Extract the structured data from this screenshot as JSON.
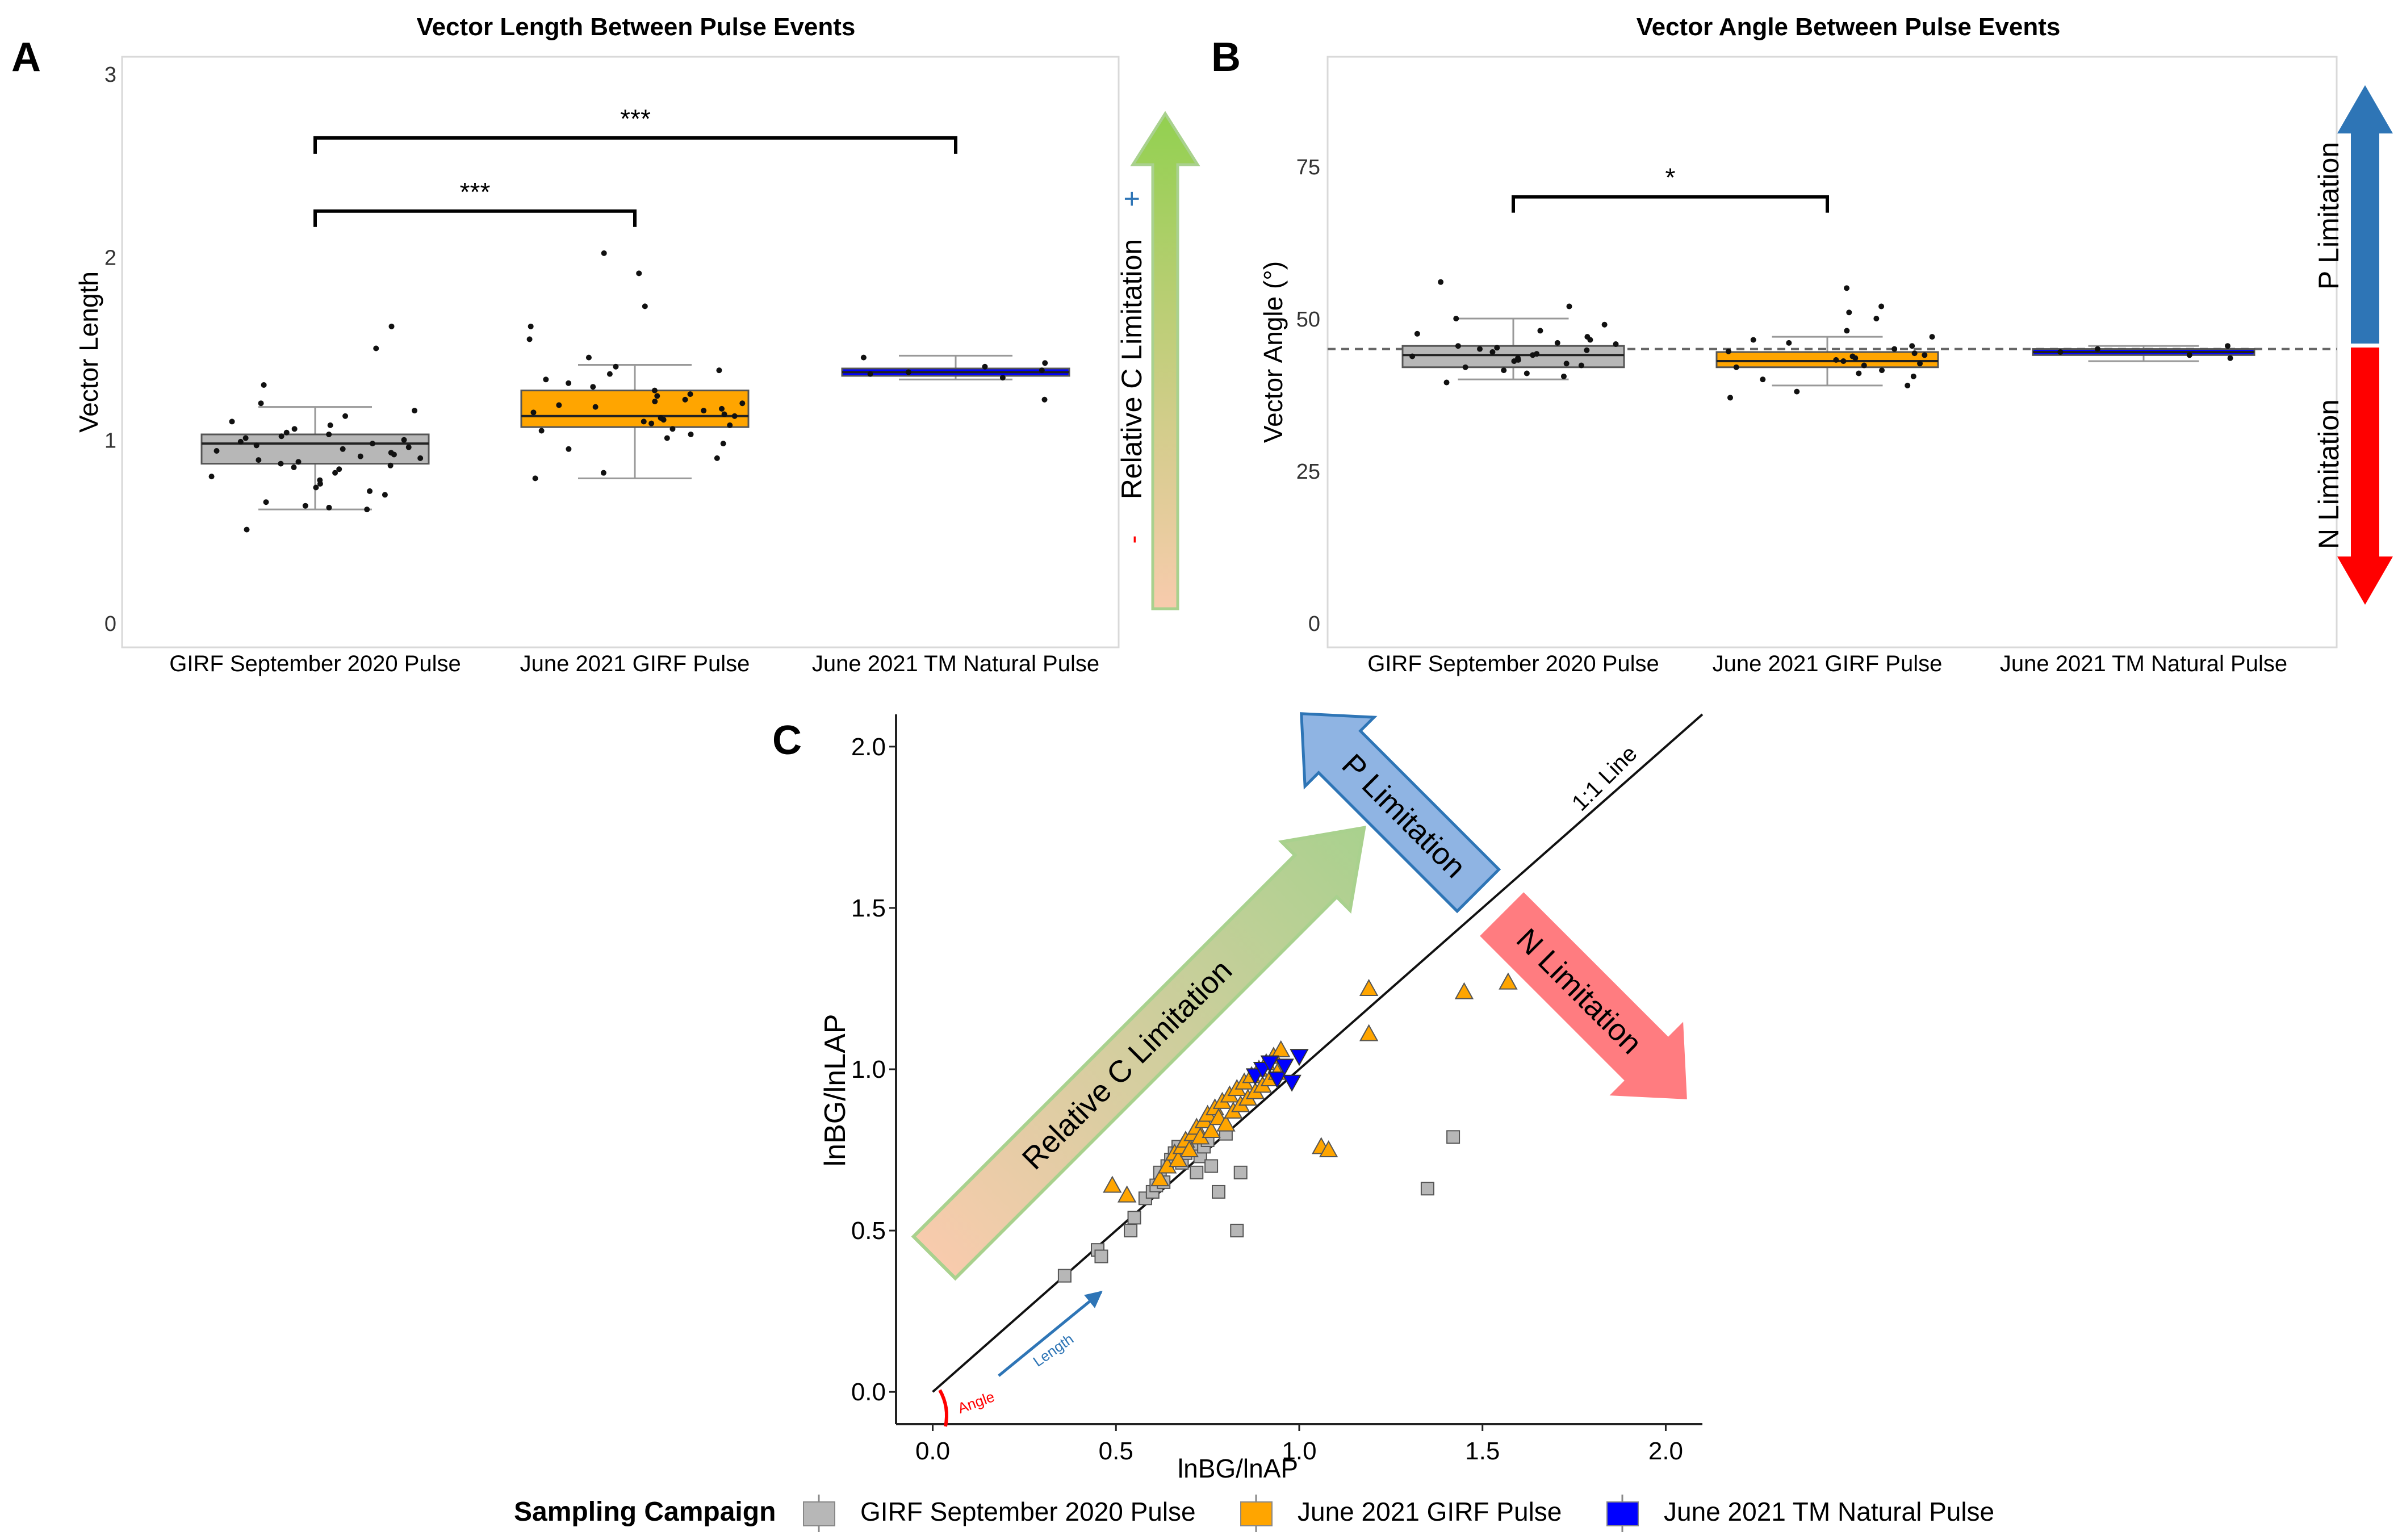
{
  "colors": {
    "gray": "#b7b7b7",
    "orange": "#ffa500",
    "blue": "#0000ff",
    "green": "#92d050",
    "peach": "#f8cbad",
    "red": "#ff0000",
    "steel": "#2e75b6",
    "light_blue": "#8fb4e3",
    "salmon": "#ff7c80"
  },
  "chart_data": [
    {
      "panel": "A",
      "type": "box",
      "title": "Vector Length Between Pulse Events",
      "ylabel": "Vector Length",
      "xlabel": "",
      "ylim": [
        0,
        3
      ],
      "yticks": [
        0,
        1,
        2,
        3
      ],
      "categories": [
        "GIRF September 2020 Pulse",
        "June 2021 GIRF Pulse",
        "June 2021 TM Natural Pulse"
      ],
      "boxes": [
        {
          "min": 0.62,
          "q1": 0.87,
          "median": 0.98,
          "q3": 1.03,
          "max": 1.18
        },
        {
          "min": 0.79,
          "q1": 1.07,
          "median": 1.13,
          "q3": 1.27,
          "max": 1.41
        },
        {
          "min": 1.33,
          "q1": 1.35,
          "median": 1.37,
          "q3": 1.39,
          "max": 1.46
        }
      ],
      "points": [
        [
          0.51,
          0.62,
          0.63,
          0.64,
          0.66,
          0.7,
          0.72,
          0.74,
          0.76,
          0.78,
          0.8,
          0.82,
          0.84,
          0.85,
          0.86,
          0.87,
          0.88,
          0.89,
          0.9,
          0.91,
          0.92,
          0.93,
          0.94,
          0.95,
          0.96,
          0.97,
          0.98,
          0.99,
          1.0,
          1.01,
          1.02,
          1.03,
          1.04,
          1.06,
          1.08,
          1.1,
          1.13,
          1.16,
          1.2,
          1.3,
          1.5,
          1.62
        ],
        [
          0.79,
          0.82,
          0.9,
          0.95,
          0.98,
          1.01,
          1.03,
          1.05,
          1.06,
          1.08,
          1.09,
          1.1,
          1.11,
          1.12,
          1.13,
          1.14,
          1.15,
          1.16,
          1.17,
          1.18,
          1.19,
          1.2,
          1.21,
          1.22,
          1.24,
          1.25,
          1.27,
          1.29,
          1.31,
          1.33,
          1.36,
          1.38,
          1.4,
          1.45,
          1.55,
          1.62,
          1.73,
          1.91,
          2.02
        ],
        [
          1.22,
          1.34,
          1.36,
          1.37,
          1.38,
          1.4,
          1.42,
          1.45
        ]
      ],
      "significance": [
        {
          "from": 0,
          "to": 1,
          "label": "***",
          "y": 2.25
        },
        {
          "from": 0,
          "to": 2,
          "label": "***",
          "y": 2.65
        }
      ],
      "side_arrow": {
        "label": "Relative C Limitation",
        "minus": "-",
        "plus": "+"
      }
    },
    {
      "panel": "B",
      "type": "box",
      "title": "Vector Angle Between Pulse Events",
      "ylabel": "Vector Angle (°)",
      "xlabel": "",
      "ylim": [
        0,
        93
      ],
      "yticks": [
        0,
        25,
        50,
        75
      ],
      "reference_line": 45,
      "categories": [
        "GIRF September 2020 Pulse",
        "June 2021 GIRF Pulse",
        "June 2021 TM Natural Pulse"
      ],
      "boxes": [
        {
          "min": 40,
          "q1": 42,
          "median": 44,
          "q3": 45.5,
          "max": 50
        },
        {
          "min": 39,
          "q1": 42,
          "median": 43,
          "q3": 44.5,
          "max": 47
        },
        {
          "min": 43,
          "q1": 44,
          "median": 44.5,
          "q3": 45,
          "max": 45.5
        }
      ],
      "points": [
        [
          39.5,
          40.5,
          41,
          41.5,
          42,
          42.3,
          42.6,
          43,
          43.2,
          43.5,
          43.8,
          44,
          44.2,
          44.5,
          44.8,
          45,
          45.2,
          45.5,
          45.8,
          46,
          46.5,
          47,
          47.5,
          48,
          49,
          50,
          52,
          56
        ],
        [
          37,
          38,
          39,
          40,
          40.5,
          41,
          41.5,
          42,
          42.3,
          42.6,
          43,
          43.2,
          43.5,
          43.8,
          44,
          44.3,
          44.6,
          45,
          45.5,
          46,
          46.5,
          47,
          48,
          50,
          51,
          52,
          55
        ],
        [
          43.5,
          44,
          44.5,
          45,
          45.5
        ]
      ],
      "significance": [
        {
          "from": 0,
          "to": 1,
          "label": "*",
          "y": 70
        }
      ],
      "side_arrow": {
        "top": "P Limitation",
        "bottom": "N Limitation"
      }
    },
    {
      "panel": "C",
      "type": "scatter",
      "xlabel": "lnBG/lnAP",
      "ylabel": "lnBG/lnLAP",
      "xlim": [
        -0.1,
        2.1
      ],
      "ylim": [
        -0.1,
        2.1
      ],
      "xticks": [
        0.0,
        0.5,
        1.0,
        1.5,
        2.0
      ],
      "yticks": [
        0.0,
        0.5,
        1.0,
        1.5,
        2.0
      ],
      "xtick_labels": [
        "0.0",
        "0.5",
        "1.0",
        "1.5",
        "2.0"
      ],
      "ytick_labels": [
        "0.0",
        "0.5",
        "1.0",
        "1.5",
        "2.0"
      ],
      "reference_line": {
        "label": "1:1 Line"
      },
      "series": [
        {
          "name": "GIRF September 2020 Pulse",
          "marker": "square",
          "x": [
            0.36,
            0.45,
            0.46,
            0.54,
            0.55,
            0.58,
            0.6,
            0.61,
            0.62,
            0.63,
            0.64,
            0.65,
            0.66,
            0.67,
            0.68,
            0.69,
            0.7,
            0.71,
            0.72,
            0.73,
            0.74,
            0.75,
            0.76,
            0.78,
            0.8,
            0.83,
            0.84,
            1.35,
            1.42
          ],
          "y": [
            0.36,
            0.44,
            0.42,
            0.5,
            0.54,
            0.6,
            0.62,
            0.64,
            0.68,
            0.65,
            0.7,
            0.72,
            0.74,
            0.76,
            0.71,
            0.74,
            0.77,
            0.75,
            0.68,
            0.73,
            0.76,
            0.78,
            0.7,
            0.62,
            0.8,
            0.5,
            0.68,
            0.63,
            0.79
          ]
        },
        {
          "name": "June 2021 GIRF Pulse",
          "marker": "triangle-up",
          "x": [
            0.49,
            0.53,
            0.62,
            0.64,
            0.66,
            0.67,
            0.68,
            0.69,
            0.7,
            0.71,
            0.72,
            0.73,
            0.74,
            0.75,
            0.76,
            0.77,
            0.78,
            0.79,
            0.8,
            0.81,
            0.82,
            0.83,
            0.84,
            0.85,
            0.86,
            0.87,
            0.88,
            0.89,
            0.9,
            0.91,
            0.92,
            0.93,
            0.94,
            0.95,
            1.06,
            1.08,
            1.19,
            1.19,
            1.45,
            1.57
          ],
          "y": [
            0.64,
            0.61,
            0.66,
            0.7,
            0.74,
            0.72,
            0.76,
            0.78,
            0.75,
            0.8,
            0.82,
            0.79,
            0.84,
            0.86,
            0.81,
            0.88,
            0.85,
            0.9,
            0.83,
            0.92,
            0.87,
            0.94,
            0.89,
            0.96,
            0.91,
            0.98,
            0.93,
            1.0,
            0.95,
            1.02,
            0.97,
            1.04,
            0.99,
            1.06,
            0.76,
            0.75,
            1.25,
            1.11,
            1.24,
            1.27
          ]
        },
        {
          "name": "June 2021 TM Natural Pulse",
          "marker": "triangle-down",
          "x": [
            0.88,
            0.9,
            0.92,
            0.94,
            0.96,
            0.98,
            1.0
          ],
          "y": [
            0.98,
            1.0,
            1.02,
            0.97,
            1.01,
            0.96,
            1.04
          ]
        }
      ],
      "annotations": {
        "p_limitation": "P Limitation",
        "n_limitation": "N Limitation",
        "relative_c": "Relative C Limitation",
        "length": "Length",
        "angle": "Angle"
      }
    }
  ],
  "panel_letters": {
    "a": "A",
    "b": "B",
    "c": "C"
  },
  "legend": {
    "title": "Sampling Campaign",
    "items": [
      "GIRF September 2020 Pulse",
      "June 2021 GIRF Pulse",
      "June 2021 TM Natural Pulse"
    ]
  }
}
